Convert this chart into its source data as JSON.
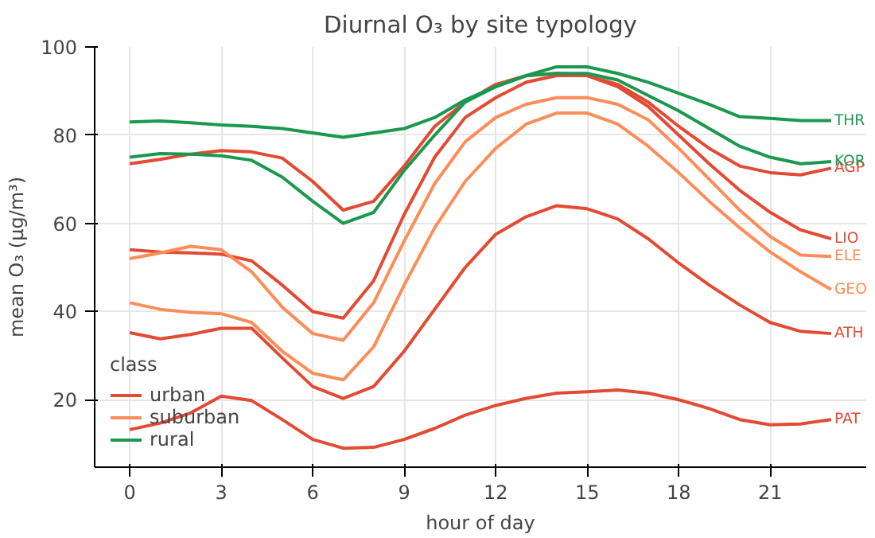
{
  "chart_data": {
    "type": "line",
    "title": "Diurnal O₃ by site typology",
    "xlabel": "hour of day",
    "ylabel": "mean O₃ (μg/m³)",
    "legend_title": "class",
    "x": [
      0,
      1,
      2,
      3,
      4,
      5,
      6,
      7,
      8,
      9,
      10,
      11,
      12,
      13,
      14,
      15,
      16,
      17,
      18,
      19,
      20,
      21,
      22,
      23
    ],
    "series": [
      {
        "name": "urban",
        "color": "#e34a33",
        "values": [
          73.5,
          74.5,
          75.7,
          76.5,
          76.2,
          74.8,
          69.5,
          63,
          65,
          73,
          82,
          87.5,
          91.5,
          93.5,
          94,
          93.5,
          91.5,
          87.5,
          82,
          77,
          73,
          71.5,
          71,
          72.5
        ]
      },
      {
        "color": "#e34a33",
        "values": [
          54,
          53.5,
          53.3,
          53,
          51.5,
          46,
          40,
          38.5,
          47,
          62,
          75,
          84,
          88.5,
          92,
          93.5,
          93.5,
          91,
          86.5,
          80,
          73.5,
          67.5,
          62.5,
          58.5,
          56.5
        ]
      },
      {
        "color": "#e34a33",
        "values": [
          35.2,
          33.8,
          34.8,
          36.2,
          36.2,
          29.5,
          23,
          20.3,
          23,
          31,
          40.5,
          50,
          57.5,
          61.5,
          64,
          63.3,
          61,
          56.5,
          51,
          46,
          41.5,
          37.5,
          35.5,
          35
        ]
      },
      {
        "color": "#e34a33",
        "values": [
          13.2,
          14.7,
          17,
          20.8,
          19.8,
          15.5,
          11,
          9,
          9.2,
          11,
          13.5,
          16.5,
          18.7,
          20.3,
          21.5,
          21.8,
          22.2,
          21.5,
          20,
          18,
          15.5,
          14.3,
          14.5,
          15.5
        ]
      },
      {
        "name": "suburban",
        "color": "#fc8d59",
        "values": [
          52,
          53.3,
          54.8,
          54,
          49,
          41,
          35,
          33.5,
          42,
          56,
          69,
          78.5,
          84,
          87,
          88.5,
          88.5,
          87,
          83.5,
          77,
          70,
          63,
          57,
          52.8,
          52.5
        ]
      },
      {
        "color": "#fc8d59",
        "values": [
          42,
          40.5,
          39.8,
          39.5,
          37.5,
          31,
          26,
          24.5,
          32,
          46,
          59,
          69.5,
          77,
          82.5,
          85,
          85,
          82.5,
          77.5,
          71.5,
          65,
          59,
          53.5,
          49,
          45
        ]
      },
      {
        "name": "rural",
        "color": "#1a9850",
        "values": [
          83,
          83.2,
          82.8,
          82.3,
          82,
          81.5,
          80.5,
          79.5,
          80.5,
          81.5,
          84,
          88,
          91,
          93.5,
          95.5,
          95.5,
          94,
          92,
          89.5,
          87,
          84.2,
          83.8,
          83.3,
          83.3
        ]
      },
      {
        "color": "#1a9850",
        "values": [
          75,
          75.8,
          75.7,
          75.3,
          74.3,
          70.5,
          65,
          60,
          62.5,
          72,
          80,
          87.5,
          91,
          93.5,
          94,
          94,
          92.5,
          89,
          85.5,
          81.5,
          77.5,
          75,
          73.5,
          74
        ]
      }
    ],
    "annotations": [
      "AGP",
      "LIO",
      "ATH",
      "PAT",
      "ELE",
      "GEO",
      "THR",
      "KOR"
    ],
    "xlim": [
      -1.15,
      24.15
    ],
    "ylim": [
      4.7,
      100
    ],
    "xticks": [
      0,
      3,
      6,
      9,
      12,
      15,
      18,
      21
    ],
    "yticks": [
      20,
      40,
      60,
      80,
      100
    ],
    "grid": true,
    "legend": "bottom left",
    "line_style": "solid"
  }
}
